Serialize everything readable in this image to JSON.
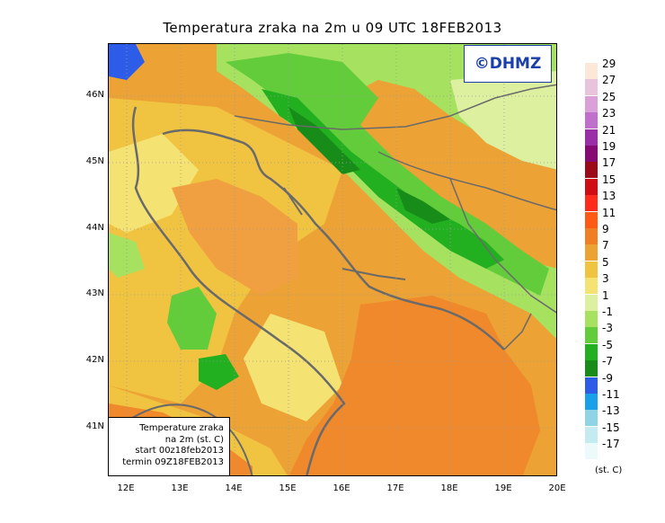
{
  "title": "Temperatura zraka na 2m u 09 UTC 18FEB2013",
  "logo_text": "©DHMZ",
  "infobox": {
    "line1": "Temperature zraka",
    "line2": "na 2m (st. C)",
    "line3": "start 00z18feb2013",
    "line4": "termin 09Z18FEB2013"
  },
  "lat_labels": [
    "46N",
    "45N",
    "44N",
    "43N",
    "42N",
    "41N"
  ],
  "lon_labels": [
    "12E",
    "13E",
    "14E",
    "15E",
    "16E",
    "17E",
    "18E",
    "19E",
    "20E"
  ],
  "legend": {
    "unit": "(st. C)",
    "labels": [
      "29",
      "27",
      "25",
      "23",
      "21",
      "19",
      "17",
      "15",
      "13",
      "11",
      "9",
      "7",
      "5",
      "3",
      "1",
      "-1",
      "-3",
      "-5",
      "-7",
      "-9",
      "-11",
      "-13",
      "-15",
      "-17"
    ],
    "colors": [
      "#fce8d8",
      "#e8c4dc",
      "#dca0d8",
      "#c070cc",
      "#9a2ea8",
      "#860a72",
      "#9a0a18",
      "#d00c12",
      "#ff2a1a",
      "#ff5a14",
      "#f07e22",
      "#eca234",
      "#f0c440",
      "#f4e272",
      "#dcf0a0",
      "#a6e260",
      "#62cc3a",
      "#22b020",
      "#188c18",
      "#2c5ce8",
      "#18a0e8",
      "#8ed4e4",
      "#c4ecf0",
      "#ecfafc"
    ]
  },
  "colors": {
    "sea_warm": "#f0882c",
    "land_cold": "#3cb82c",
    "coastline": "#6a6a6a"
  }
}
